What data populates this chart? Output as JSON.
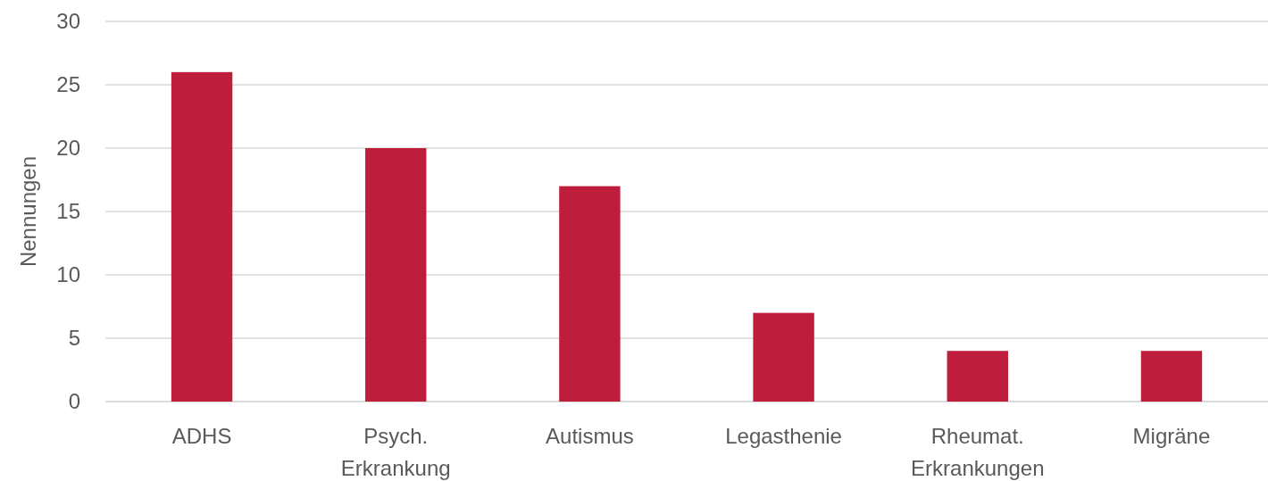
{
  "chart_data": {
    "type": "bar",
    "ylabel": "Nennungen",
    "categories": [
      "ADHS",
      "Psych. Erkrankung",
      "Autismus",
      "Legasthenie",
      "Rheumat. Erkrankungen",
      "Migräne"
    ],
    "values": [
      26,
      20,
      17,
      7,
      4,
      4
    ],
    "color": "#be1e3c",
    "ylim": [
      0,
      30
    ],
    "yticks": [
      0,
      5,
      10,
      15,
      20,
      25,
      30
    ],
    "grid": "y"
  }
}
